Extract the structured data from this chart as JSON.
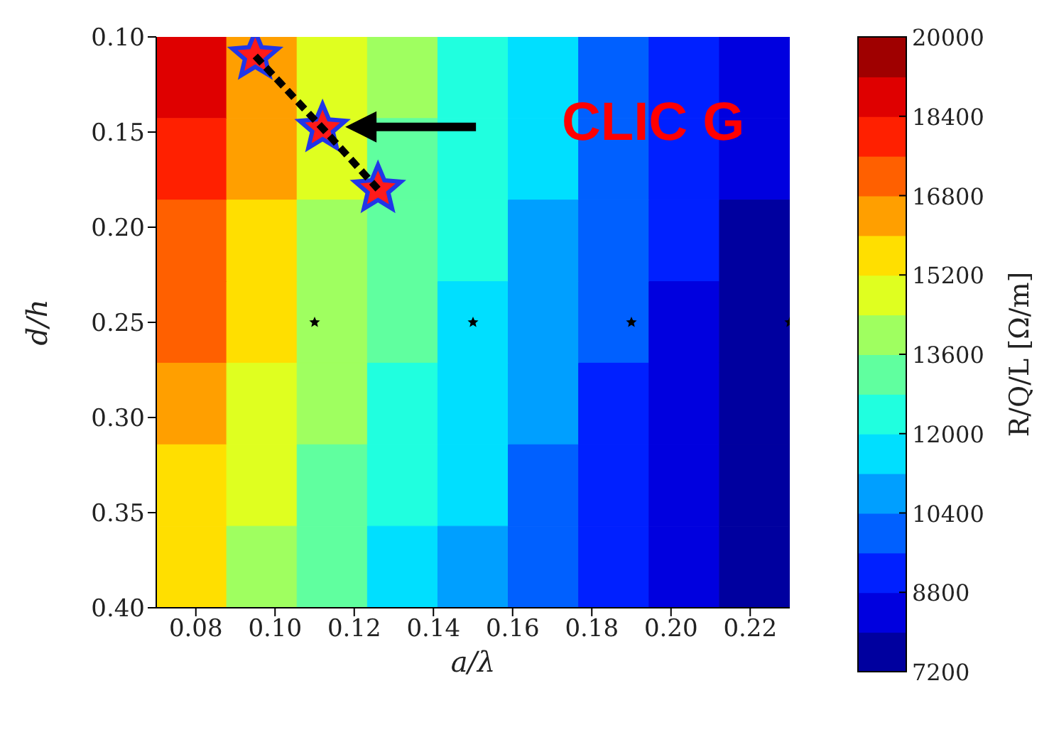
{
  "chart_data": {
    "type": "heatmap",
    "xlabel": "a/λ",
    "ylabel": "d/h",
    "clabel": "R/Q/L [Ω/m]",
    "cells": [
      [
        18600,
        16400,
        15000,
        13800,
        12600,
        11400,
        10200,
        9200,
        8200
      ],
      [
        18000,
        16000,
        14700,
        13500,
        12300,
        11200,
        10000,
        9000,
        8000
      ],
      [
        17400,
        15600,
        14300,
        13200,
        12000,
        10900,
        9800,
        8800,
        7900
      ],
      [
        16800,
        15200,
        14000,
        12900,
        11800,
        10700,
        9600,
        8600,
        7700
      ],
      [
        16300,
        14800,
        13600,
        12500,
        11500,
        10400,
        9400,
        8500,
        7600
      ],
      [
        15800,
        14400,
        13300,
        12200,
        11200,
        10200,
        9200,
        8300,
        7500
      ],
      [
        15300,
        14000,
        12900,
        11900,
        10900,
        9900,
        9000,
        8100,
        7400
      ]
    ],
    "clim": [
      7200,
      20000
    ],
    "cticks": [
      7200,
      8800,
      10400,
      12000,
      13600,
      15200,
      16800,
      18400,
      20000
    ],
    "xlim": [
      0.07,
      0.23
    ],
    "xticks": [
      {
        "value": 0.08,
        "label": "0.08"
      },
      {
        "value": 0.1,
        "label": "0.10"
      },
      {
        "value": 0.12,
        "label": "0.12"
      },
      {
        "value": 0.14,
        "label": "0.14"
      },
      {
        "value": 0.16,
        "label": "0.16"
      },
      {
        "value": 0.18,
        "label": "0.18"
      },
      {
        "value": 0.2,
        "label": "0.20"
      },
      {
        "value": 0.22,
        "label": "0.22"
      }
    ],
    "ylim": [
      0.4,
      0.1
    ],
    "yticks": [
      {
        "value": 0.1,
        "label": "0.10"
      },
      {
        "value": 0.15,
        "label": "0.15"
      },
      {
        "value": 0.2,
        "label": "0.20"
      },
      {
        "value": 0.25,
        "label": "0.25"
      },
      {
        "value": 0.3,
        "label": "0.30"
      },
      {
        "value": 0.35,
        "label": "0.35"
      },
      {
        "value": 0.4,
        "label": "0.40"
      }
    ],
    "series": [
      {
        "type": "line",
        "color": "#000000",
        "line_style": "dashed",
        "x": [
          0.095,
          0.112,
          0.126
        ],
        "values": [
          0.11,
          0.148,
          0.18
        ]
      },
      {
        "type": "scatter",
        "marker": "star",
        "color": "#ff1a1a",
        "x": [
          0.095,
          0.112,
          0.126
        ],
        "values": [
          0.11,
          0.148,
          0.18
        ]
      },
      {
        "type": "scatter",
        "marker": "star",
        "color": "#000000",
        "x": [
          0.11,
          0.15,
          0.19,
          0.23
        ],
        "values": [
          0.25,
          0.25,
          0.25,
          0.25
        ]
      }
    ],
    "annotations": [
      "CLIC G"
    ]
  }
}
